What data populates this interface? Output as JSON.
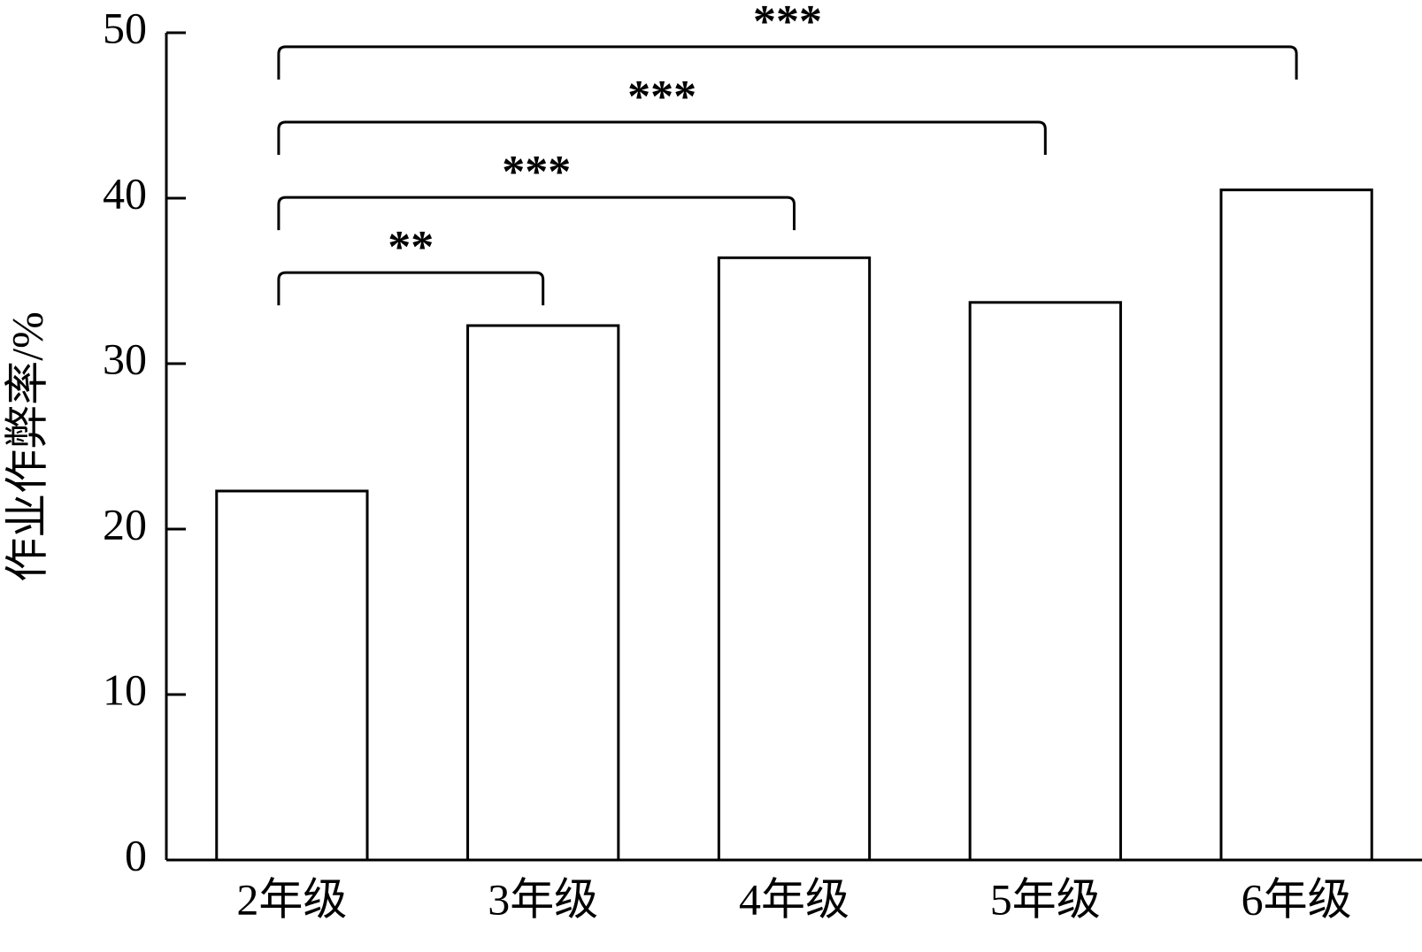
{
  "chart_data": {
    "type": "bar",
    "y_label": "作业作弊率/%",
    "categories": [
      "2年级",
      "3年级",
      "4年级",
      "5年级",
      "6年级"
    ],
    "values": [
      22.3,
      32.3,
      36.4,
      33.7,
      40.5
    ],
    "color": "#ffffff",
    "ylim": [
      0,
      50
    ],
    "yticks": [
      0,
      10,
      20,
      30,
      40,
      50
    ],
    "grid": false,
    "annotations": [
      {
        "text": "**",
        "from": "2年级",
        "to": "3年级"
      },
      {
        "text": "***",
        "from": "2年级",
        "to": "4年级"
      },
      {
        "text": "***",
        "from": "2年级",
        "to": "5年级"
      },
      {
        "text": "***",
        "from": "2年级",
        "to": "6年级"
      }
    ]
  }
}
